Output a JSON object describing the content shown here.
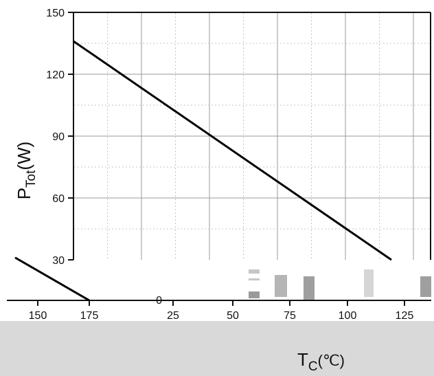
{
  "chart_data": {
    "type": "line",
    "xlabel": "T",
    "xlabel_sub": "C",
    "xlabel_unit": "(℃)",
    "ylabel": "P",
    "ylabel_sub": "Tot",
    "ylabel_unit": "(W)",
    "xlim": [
      25,
      175
    ],
    "ylim": [
      0,
      150
    ],
    "x_ticks": [
      25,
      50,
      75,
      100,
      125
    ],
    "x_ticks_lower_strip": [
      150,
      175
    ],
    "y_ticks": [
      30,
      60,
      90,
      120,
      150
    ],
    "y_tick_zero": "0",
    "grid": true,
    "series": [
      {
        "x": [
          25,
          175
        ],
        "y": [
          136,
          0
        ]
      }
    ]
  }
}
